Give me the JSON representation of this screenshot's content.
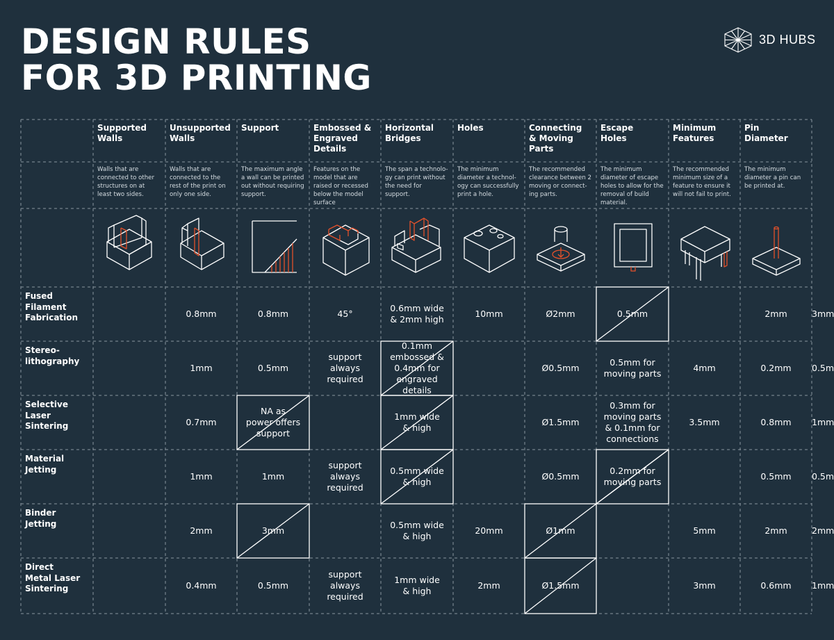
{
  "page": {
    "title_line1": "DESIGN RULES",
    "title_line2": "FOR 3D PRINTING",
    "brand": "3D HUBS"
  },
  "colors": {
    "background": "#1f303d",
    "accent": "#e4512b",
    "line": "#ffffff",
    "grid": "#8a969e"
  },
  "columns": [
    {
      "name": "Supported\nWalls",
      "desc": "Walls that are\nconnected to other\nstructures on at\nleast two sides.",
      "icon": "supported-walls-icon"
    },
    {
      "name": "Unsupported\nWalls",
      "desc": "Walls that are\nconnected to the\nrest of the print on\nonly one side.",
      "icon": "unsupported-walls-icon"
    },
    {
      "name": "Support",
      "desc": "The maximum angle\na wall can be printed\nout without requiring\nsupport.",
      "icon": "support-angle-icon"
    },
    {
      "name": "Embossed &\nEngraved\nDetails",
      "desc": "Features on the\nmodel that are\nraised or recessed\nbelow the model\nsurface",
      "icon": "embossed-engraved-icon"
    },
    {
      "name": "Horizontal\nBridges",
      "desc": "The span a technolo-\ngy can print without\nthe need for\nsupport.",
      "icon": "horizontal-bridges-icon"
    },
    {
      "name": "Holes",
      "desc": "The minimum\ndiameter a technol-\nogy can successfully\nprint a hole.",
      "icon": "holes-icon"
    },
    {
      "name": "Connecting\n& Moving\nParts",
      "desc": "The recommended\nclearance between 2\nmoving or connect-\ning parts.",
      "icon": "moving-parts-icon"
    },
    {
      "name": "Escape\nHoles",
      "desc": "The minimum\ndiameter of escape\nholes to allow for the\nremoval of build\nmaterial.",
      "icon": "escape-holes-icon"
    },
    {
      "name": "Minimum\nFeatures",
      "desc": "The recommended\nminimum size of a\nfeature to ensure it\nwill not fail to print.",
      "icon": "minimum-features-icon"
    },
    {
      "name": "Pin\nDiameter",
      "desc": "The minimum\ndiameter a pin can\nbe printed at.",
      "icon": "pin-diameter-icon"
    }
  ],
  "rows": [
    {
      "name": "Fused\nFilament\nFabrication",
      "cells": [
        "0.8mm",
        "0.8mm",
        "45°",
        "0.6mm wide\n& 2mm high",
        "10mm",
        "Ø2mm",
        "0.5mm",
        null,
        "2mm",
        "3mm"
      ]
    },
    {
      "name": "Stereo-\nlithography",
      "cells": [
        "1mm",
        "0.5mm",
        "support\nalways\nrequired",
        "0.1mm\nembossed &\n0.4mm for\nengraved details",
        null,
        "Ø0.5mm",
        "0.5mm for\nmoving parts",
        "4mm",
        "0.2mm",
        "0.5mm"
      ]
    },
    {
      "name": "Selective\nLaser\nSintering",
      "cells": [
        "0.7mm",
        "NA as\npower offers\nsupport",
        null,
        "1mm wide\n& high",
        null,
        "Ø1.5mm",
        "0.3mm for\nmoving parts\n& 0.1mm for\nconnections",
        "3.5mm",
        "0.8mm",
        "1mm"
      ]
    },
    {
      "name": "Material\nJetting",
      "cells": [
        "1mm",
        "1mm",
        "support\nalways\nrequired",
        "0.5mm wide\n& high",
        null,
        "Ø0.5mm",
        "0.2mm for\nmoving parts",
        null,
        "0.5mm",
        "0.5mm"
      ]
    },
    {
      "name": "Binder\nJetting",
      "cells": [
        "2mm",
        "3mm",
        null,
        "0.5mm wide\n& high",
        "20mm",
        "Ø1mm",
        null,
        "5mm",
        "2mm",
        "2mm"
      ]
    },
    {
      "name": "Direct\nMetal Laser\nSintering",
      "cells": [
        "0.4mm",
        "0.5mm",
        "support\nalways\nrequired",
        "1mm wide\n& high",
        "2mm",
        "Ø1.5mm",
        null,
        "3mm",
        "0.6mm",
        "1mm"
      ]
    }
  ]
}
